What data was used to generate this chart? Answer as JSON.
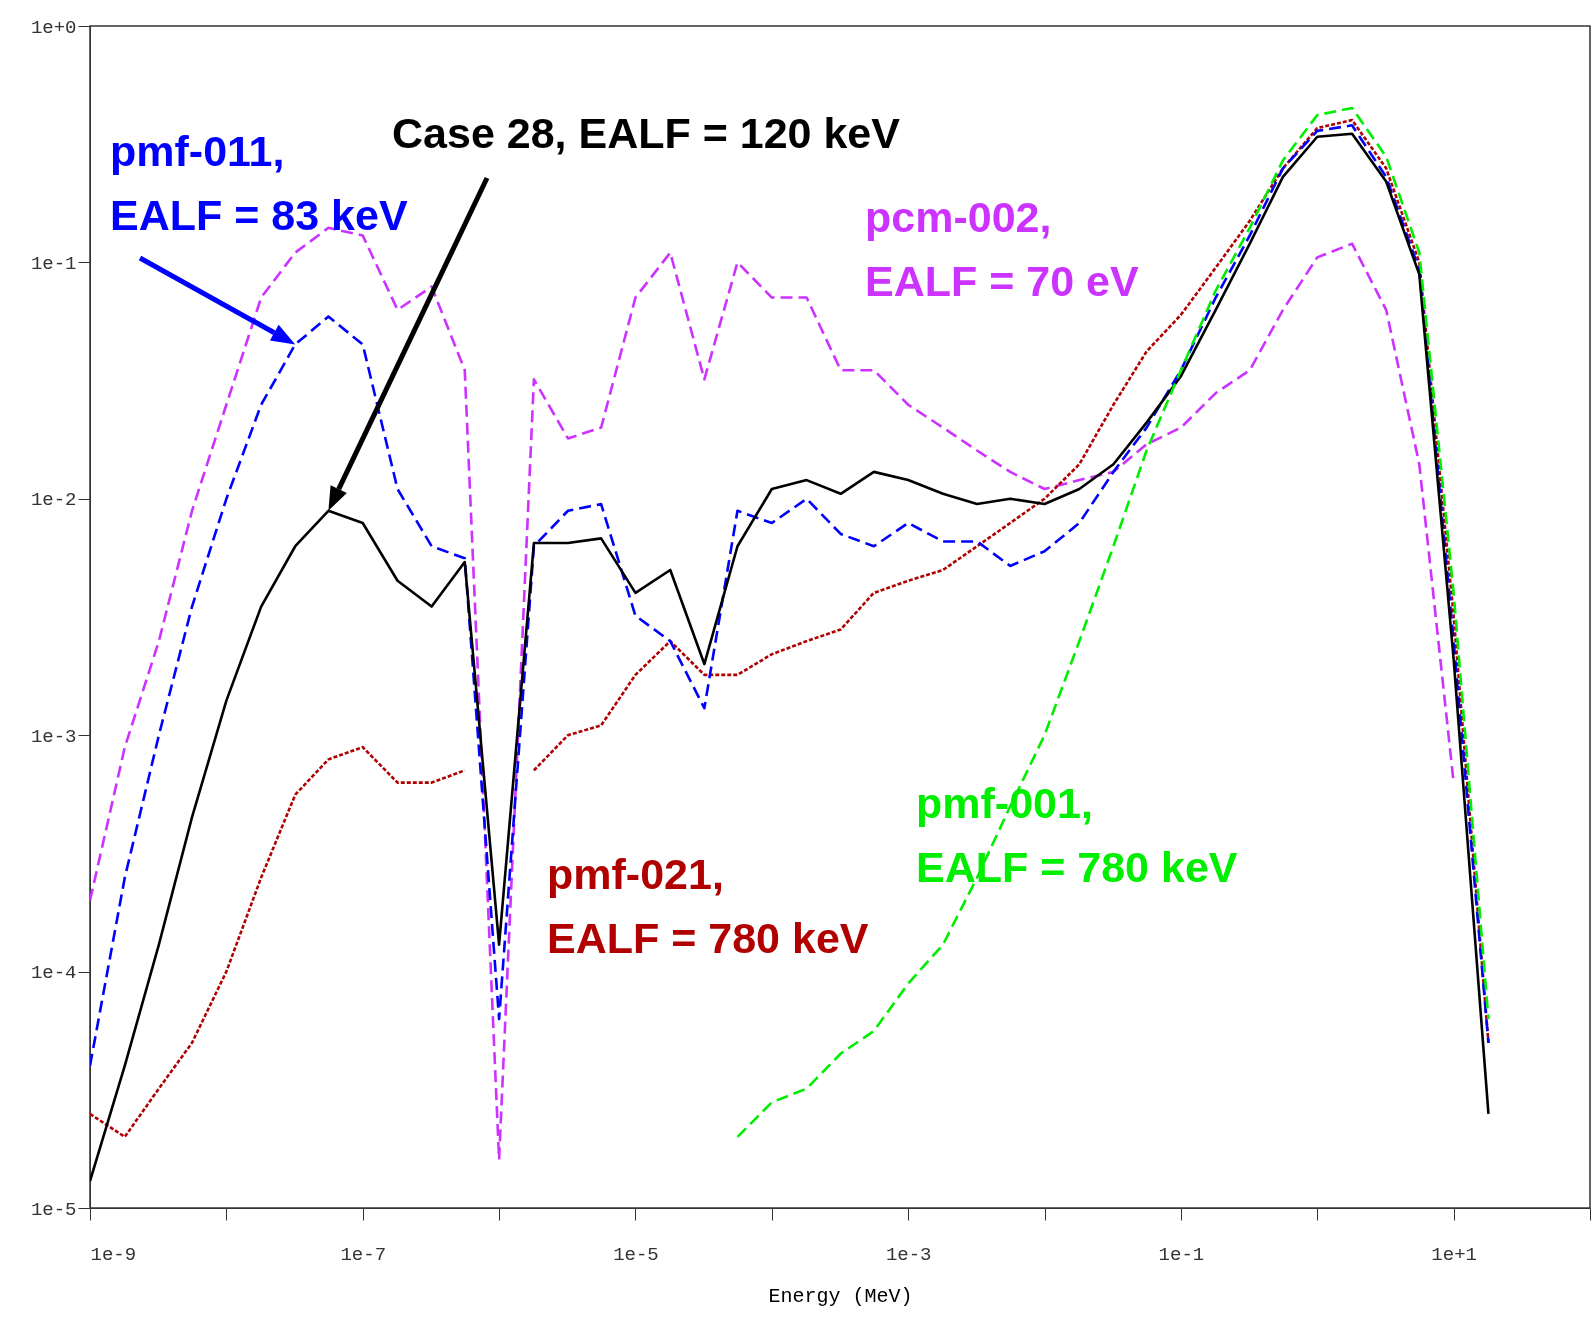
{
  "chart_data": {
    "type": "line",
    "xlabel": "Energy (MeV)",
    "log": "xy",
    "grid": false,
    "legend": false,
    "marker": "none",
    "xlim": [
      1e-09,
      100
    ],
    "ylim": [
      1e-05,
      1
    ],
    "xticks": [
      {
        "value": 1e-09,
        "label": "1e-9"
      },
      {
        "value": 1e-08,
        "label": null
      },
      {
        "value": 1e-07,
        "label": "1e-7"
      },
      {
        "value": 1e-06,
        "label": null
      },
      {
        "value": 1e-05,
        "label": "1e-5"
      },
      {
        "value": 0.0001,
        "label": null
      },
      {
        "value": 0.001,
        "label": "1e-3"
      },
      {
        "value": 0.01,
        "label": null
      },
      {
        "value": 0.1,
        "label": "1e-1"
      },
      {
        "value": 1,
        "label": null
      },
      {
        "value": 10,
        "label": "1e+1"
      },
      {
        "value": 100,
        "label": null
      }
    ],
    "yticks": [
      {
        "value": 1e-05,
        "label": "1e-5"
      },
      {
        "value": 0.0001,
        "label": "1e-4"
      },
      {
        "value": 0.001,
        "label": "1e-3"
      },
      {
        "value": 0.01,
        "label": "1e-2"
      },
      {
        "value": 0.1,
        "label": "1e-1"
      },
      {
        "value": 1,
        "label": "1e+0"
      }
    ],
    "x": [
      1e-09,
      1.8e-09,
      3.2e-09,
      5.6e-09,
      1e-08,
      1.8e-08,
      3.2e-08,
      5.6e-08,
      1e-07,
      1.8e-07,
      3.2e-07,
      5.6e-07,
      1e-06,
      1.8e-06,
      3.2e-06,
      5.6e-06,
      1e-05,
      1.8e-05,
      3.2e-05,
      5.6e-05,
      0.0001,
      0.00018,
      0.00032,
      0.00056,
      0.001,
      0.0018,
      0.0032,
      0.0056,
      0.01,
      0.018,
      0.032,
      0.056,
      0.1,
      0.18,
      0.32,
      0.56,
      1,
      1.8,
      3.2,
      5.6,
      10,
      18
    ],
    "series": [
      {
        "name": "pcm-002, EALF = 70 eV",
        "color": "#cc33ff",
        "line_style": "dashed",
        "values": [
          0.0002,
          0.00089,
          0.0025,
          0.0089,
          0.025,
          0.071,
          0.11,
          0.14,
          0.13,
          0.063,
          0.079,
          0.035,
          1.6e-05,
          0.032,
          0.018,
          0.02,
          0.071,
          0.11,
          0.032,
          0.1,
          0.071,
          0.071,
          0.035,
          0.035,
          0.025,
          0.02,
          0.016,
          0.013,
          0.011,
          0.012,
          0.013,
          0.017,
          0.02,
          0.028,
          0.035,
          0.063,
          0.105,
          0.12,
          0.063,
          0.014,
          0.00063,
          null
        ]
      },
      {
        "name": "pmf-021, EALF = 780 keV",
        "color": "#b00000",
        "line_style": "dotted",
        "values": [
          2.5e-05,
          2e-05,
          3.2e-05,
          5e-05,
          0.0001,
          0.00025,
          0.00056,
          0.00079,
          0.00089,
          0.00063,
          0.00063,
          0.00071,
          null,
          0.00071,
          0.001,
          0.0011,
          0.0018,
          0.0025,
          0.0018,
          0.0018,
          0.0022,
          0.0025,
          0.0028,
          0.004,
          0.0045,
          0.005,
          0.0063,
          0.0079,
          0.01,
          0.014,
          0.025,
          0.042,
          0.06,
          0.095,
          0.15,
          0.25,
          0.37,
          0.4,
          0.25,
          0.1,
          0.0032,
          5e-05
        ]
      },
      {
        "name": "pmf-011, EALF = 83 keV",
        "color": "#0000ff",
        "line_style": "dashed",
        "values": [
          4e-05,
          0.00025,
          0.001,
          0.0035,
          0.01,
          0.025,
          0.045,
          0.059,
          0.045,
          0.011,
          0.0063,
          0.0056,
          6.3e-05,
          0.0063,
          0.0089,
          0.0095,
          0.0032,
          0.0025,
          0.0013,
          0.0089,
          0.0079,
          0.01,
          0.0071,
          0.0063,
          0.0079,
          0.0066,
          0.0066,
          0.0052,
          0.006,
          0.0079,
          0.013,
          0.02,
          0.035,
          0.071,
          0.13,
          0.25,
          0.36,
          0.38,
          0.23,
          0.093,
          0.0025,
          5e-05
        ]
      },
      {
        "name": "Case 28, EALF = 120 keV",
        "color": "#000000",
        "line_style": "solid",
        "values": [
          1.3e-05,
          4e-05,
          0.00013,
          0.00045,
          0.0014,
          0.0035,
          0.0063,
          0.0089,
          0.0079,
          0.0045,
          0.0035,
          0.0054,
          0.00013,
          0.0065,
          0.0065,
          0.0068,
          0.004,
          0.005,
          0.002,
          0.0063,
          0.011,
          0.012,
          0.0105,
          0.013,
          0.012,
          0.0105,
          0.0095,
          0.01,
          0.0095,
          0.011,
          0.014,
          0.021,
          0.033,
          0.063,
          0.12,
          0.23,
          0.34,
          0.35,
          0.22,
          0.089,
          0.0021,
          2.5e-05
        ]
      },
      {
        "name": "pmf-001, EALF = 780 keV",
        "color": "#00ee00",
        "line_style": "dashed",
        "values": [
          null,
          null,
          null,
          null,
          null,
          null,
          null,
          null,
          null,
          null,
          null,
          null,
          null,
          null,
          null,
          null,
          null,
          null,
          null,
          2e-05,
          2.8e-05,
          3.2e-05,
          4.5e-05,
          5.6e-05,
          8.9e-05,
          0.00013,
          0.00025,
          0.0005,
          0.001,
          0.0025,
          0.0063,
          0.016,
          0.035,
          0.076,
          0.14,
          0.27,
          0.42,
          0.45,
          0.28,
          0.11,
          0.004,
          6.3e-05
        ]
      }
    ]
  }
}
